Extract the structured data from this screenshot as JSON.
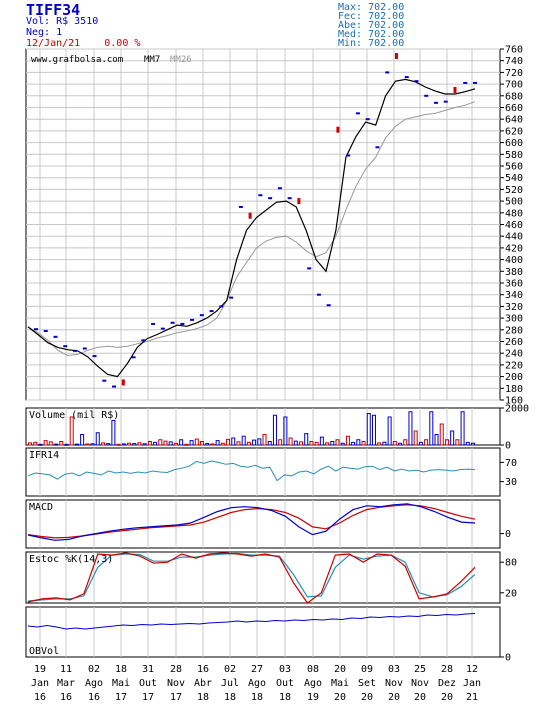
{
  "header": {
    "ticker": "TIFF34",
    "vol": "Vol: R$ 3510",
    "neg": "Neg: 1",
    "date_line": "12/Jan/21    0.00 %",
    "stats": [
      "Max: 702.00",
      "Fec: 702.00",
      "Abe: 702.00",
      "Med: 702.00",
      "Min: 702.00"
    ]
  },
  "colors": {
    "blue": "#0000cc",
    "red": "#cc0000",
    "teal": "#2a8fb3",
    "grid": "#c8c8c8",
    "gray_ma": "#999999"
  },
  "chart_data": [
    {
      "type": "line",
      "panel": "price",
      "legend": [
        "www.grafbolsa.com",
        "MM7",
        "MM26"
      ],
      "y_ticks": [
        160,
        180,
        200,
        220,
        240,
        260,
        280,
        300,
        320,
        340,
        360,
        380,
        400,
        420,
        440,
        460,
        480,
        500,
        520,
        540,
        560,
        580,
        600,
        620,
        640,
        660,
        680,
        700,
        720,
        740,
        760
      ],
      "ylim": [
        160,
        760
      ],
      "x_labels": [
        [
          "19",
          "Jan",
          "16"
        ],
        [
          "11",
          "Mar",
          "16"
        ],
        [
          "02",
          "Ago",
          "16"
        ],
        [
          "18",
          "Mai",
          "17"
        ],
        [
          "31",
          "Out",
          "17"
        ],
        [
          "28",
          "Nov",
          "17"
        ],
        [
          "16",
          "Abr",
          "18"
        ],
        [
          "02",
          "Jul",
          "18"
        ],
        [
          "27",
          "Ago",
          "18"
        ],
        [
          "03",
          "Out",
          "18"
        ],
        [
          "08",
          "Ago",
          "19"
        ],
        [
          "20",
          "Mai",
          "20"
        ],
        [
          "09",
          "Set",
          "20"
        ],
        [
          "03",
          "Nov",
          "20"
        ],
        [
          "25",
          "Nov",
          "20"
        ],
        [
          "28",
          "Dez",
          "20"
        ],
        [
          "12",
          "Jan",
          "21"
        ]
      ],
      "series": [
        {
          "name": "MM7",
          "values": [
            285,
            272,
            258,
            250,
            246,
            244,
            234,
            218,
            204,
            200,
            222,
            250,
            265,
            272,
            280,
            288,
            286,
            292,
            300,
            312,
            330,
            400,
            450,
            472,
            485,
            498,
            500,
            490,
            450,
            400,
            380,
            450,
            575,
            610,
            635,
            630,
            680,
            705,
            708,
            704,
            695,
            688,
            683,
            683,
            687,
            692
          ]
        },
        {
          "name": "MM26",
          "values": [
            285,
            275,
            262,
            245,
            236,
            238,
            245,
            250,
            252,
            250,
            252,
            256,
            260,
            266,
            270,
            275,
            278,
            282,
            288,
            300,
            330,
            370,
            395,
            420,
            432,
            438,
            440,
            430,
            415,
            405,
            412,
            440,
            485,
            525,
            555,
            575,
            608,
            628,
            640,
            644,
            648,
            650,
            655,
            660,
            664,
            670
          ]
        }
      ],
      "candles": [
        {
          "v": 281,
          "c": "blue"
        },
        {
          "v": 278,
          "c": "blue"
        },
        {
          "v": 268,
          "c": "blue"
        },
        {
          "v": 252,
          "c": "blue"
        },
        {
          "v": 244,
          "c": "blue"
        },
        {
          "v": 248,
          "c": "blue"
        },
        {
          "v": 235,
          "c": "blue"
        },
        {
          "v": 193,
          "c": "blue"
        },
        {
          "v": 183,
          "c": "blue"
        },
        {
          "v": 190,
          "c": "red"
        },
        {
          "v": 233,
          "c": "blue"
        },
        {
          "v": 262,
          "c": "blue"
        },
        {
          "v": 290,
          "c": "blue"
        },
        {
          "v": 282,
          "c": "blue"
        },
        {
          "v": 292,
          "c": "blue"
        },
        {
          "v": 290,
          "c": "blue"
        },
        {
          "v": 297,
          "c": "blue"
        },
        {
          "v": 305,
          "c": "blue"
        },
        {
          "v": 312,
          "c": "blue"
        },
        {
          "v": 320,
          "c": "blue"
        },
        {
          "v": 335,
          "c": "blue"
        },
        {
          "v": 490,
          "c": "blue"
        },
        {
          "v": 475,
          "c": "red"
        },
        {
          "v": 510,
          "c": "blue"
        },
        {
          "v": 505,
          "c": "blue"
        },
        {
          "v": 522,
          "c": "blue"
        },
        {
          "v": 505,
          "c": "blue"
        },
        {
          "v": 500,
          "c": "red"
        },
        {
          "v": 385,
          "c": "blue"
        },
        {
          "v": 340,
          "c": "blue"
        },
        {
          "v": 322,
          "c": "blue"
        },
        {
          "v": 622,
          "c": "red"
        },
        {
          "v": 578,
          "c": "blue"
        },
        {
          "v": 650,
          "c": "blue"
        },
        {
          "v": 640,
          "c": "blue"
        },
        {
          "v": 592,
          "c": "blue"
        },
        {
          "v": 720,
          "c": "blue"
        },
        {
          "v": 748,
          "c": "red"
        },
        {
          "v": 712,
          "c": "blue"
        },
        {
          "v": 705,
          "c": "blue"
        },
        {
          "v": 680,
          "c": "blue"
        },
        {
          "v": 668,
          "c": "blue"
        },
        {
          "v": 670,
          "c": "blue"
        },
        {
          "v": 690,
          "c": "red"
        },
        {
          "v": 702,
          "c": "blue"
        },
        {
          "v": 702,
          "c": "blue"
        }
      ]
    },
    {
      "type": "bar",
      "panel": "volume",
      "title": "Volume (mil R$)",
      "y_ticks": [
        0,
        2000
      ],
      "ylim": [
        0,
        2000
      ],
      "values": [
        120,
        150,
        40,
        250,
        180,
        50,
        200,
        40,
        1600,
        50,
        600,
        60,
        70,
        700,
        120,
        80,
        1400,
        40,
        60,
        100,
        80,
        130,
        70,
        200,
        150,
        300,
        220,
        180,
        100,
        300,
        40,
        250,
        340,
        200,
        80,
        60,
        250,
        100,
        320,
        400,
        180,
        500,
        150,
        280,
        350,
        600,
        200,
        1700,
        300,
        1600,
        400,
        220,
        180,
        650,
        200,
        150,
        450,
        120,
        200,
        300,
        100,
        500,
        150,
        300,
        200,
        1800,
        1700,
        120,
        160,
        1600,
        200,
        100,
        300,
        1900,
        800,
        150,
        300,
        1900,
        600,
        1200,
        300,
        800,
        300,
        1900,
        150,
        100
      ],
      "colors": [
        "red",
        "red",
        "blue",
        "red",
        "red",
        "blue",
        "red",
        "blue",
        "red",
        "blue",
        "blue",
        "red",
        "blue",
        "blue",
        "red",
        "blue",
        "blue",
        "red",
        "blue",
        "red",
        "blue",
        "red",
        "blue",
        "red",
        "blue",
        "red",
        "red",
        "blue",
        "red",
        "blue",
        "red",
        "blue",
        "red",
        "red",
        "blue",
        "red",
        "blue",
        "red",
        "red",
        "blue",
        "red",
        "blue",
        "red",
        "blue",
        "blue",
        "red",
        "blue",
        "blue",
        "red",
        "blue",
        "red",
        "blue",
        "red",
        "blue",
        "red",
        "red",
        "blue",
        "red",
        "blue",
        "red",
        "blue",
        "red",
        "blue",
        "blue",
        "red",
        "blue",
        "blue",
        "red",
        "blue",
        "blue",
        "red",
        "blue",
        "red",
        "blue",
        "red",
        "blue",
        "red",
        "blue",
        "blue",
        "red",
        "red",
        "blue",
        "red",
        "blue",
        "blue",
        "blue"
      ]
    },
    {
      "type": "line",
      "panel": "ifr",
      "title": "IFR14",
      "y_ticks": [
        30,
        70
      ],
      "ylim": [
        0,
        100
      ],
      "series": [
        {
          "name": "IFR14",
          "values": [
            42,
            48,
            46,
            44,
            35,
            45,
            48,
            42,
            50,
            47,
            44,
            52,
            48,
            50,
            47,
            50,
            48,
            52,
            50,
            49,
            55,
            58,
            62,
            72,
            68,
            73,
            70,
            66,
            68,
            62,
            60,
            64,
            58,
            60,
            32,
            44,
            42,
            50,
            52,
            46,
            56,
            62,
            52,
            60,
            58,
            56,
            61,
            62,
            55,
            60,
            52,
            56,
            52,
            54,
            50,
            54,
            55,
            54,
            52,
            55,
            56,
            55
          ]
        }
      ]
    },
    {
      "type": "line",
      "panel": "macd",
      "title": "MACD",
      "y_ticks": [
        0
      ],
      "ylim": [
        -30,
        70
      ],
      "series": [
        {
          "name": "MACD",
          "values": [
            -3,
            -9,
            -14,
            -12,
            -5,
            0,
            5,
            9,
            12,
            14,
            16,
            18,
            22,
            34,
            46,
            54,
            56,
            54,
            48,
            36,
            14,
            -2,
            5,
            30,
            50,
            58,
            56,
            60,
            62,
            56,
            46,
            34,
            24,
            22
          ]
        },
        {
          "name": "Sinal",
          "values": [
            -2,
            -6,
            -9,
            -8,
            -5,
            -1,
            3,
            6,
            9,
            12,
            14,
            16,
            18,
            24,
            34,
            44,
            50,
            52,
            50,
            44,
            32,
            14,
            10,
            22,
            38,
            50,
            55,
            58,
            60,
            58,
            52,
            44,
            36,
            30
          ]
        }
      ]
    },
    {
      "type": "line",
      "panel": "estoc",
      "title": "Estoc %K(14,3)",
      "y_ticks": [
        20,
        80
      ],
      "ylim": [
        0,
        100
      ],
      "series": [
        {
          "name": "%K",
          "values": [
            2,
            8,
            10,
            6,
            18,
            96,
            94,
            98,
            92,
            78,
            80,
            96,
            88,
            96,
            98,
            96,
            92,
            96,
            90,
            40,
            0,
            20,
            94,
            96,
            80,
            96,
            94,
            72,
            8,
            12,
            18,
            42,
            70
          ]
        },
        {
          "name": "%D",
          "values": [
            4,
            6,
            8,
            8,
            14,
            70,
            94,
            96,
            95,
            82,
            82,
            90,
            90,
            94,
            96,
            97,
            94,
            94,
            92,
            56,
            12,
            14,
            70,
            94,
            86,
            92,
            94,
            80,
            20,
            12,
            16,
            32,
            56
          ]
        }
      ]
    },
    {
      "type": "line",
      "panel": "obv",
      "title": "OBVol",
      "y_ticks": [
        0
      ],
      "ylim": [
        0,
        100
      ],
      "series": [
        {
          "name": "OBVol",
          "values": [
            62,
            60,
            63,
            60,
            56,
            58,
            56,
            58,
            60,
            62,
            64,
            63,
            65,
            64,
            66,
            65,
            66,
            67,
            66,
            68,
            69,
            70,
            72,
            70,
            72,
            71,
            73,
            72,
            74,
            73,
            75,
            74,
            76,
            75,
            78,
            77,
            80,
            79,
            81,
            80,
            82,
            81,
            84,
            83,
            85,
            84,
            86,
            87
          ]
        }
      ]
    }
  ]
}
